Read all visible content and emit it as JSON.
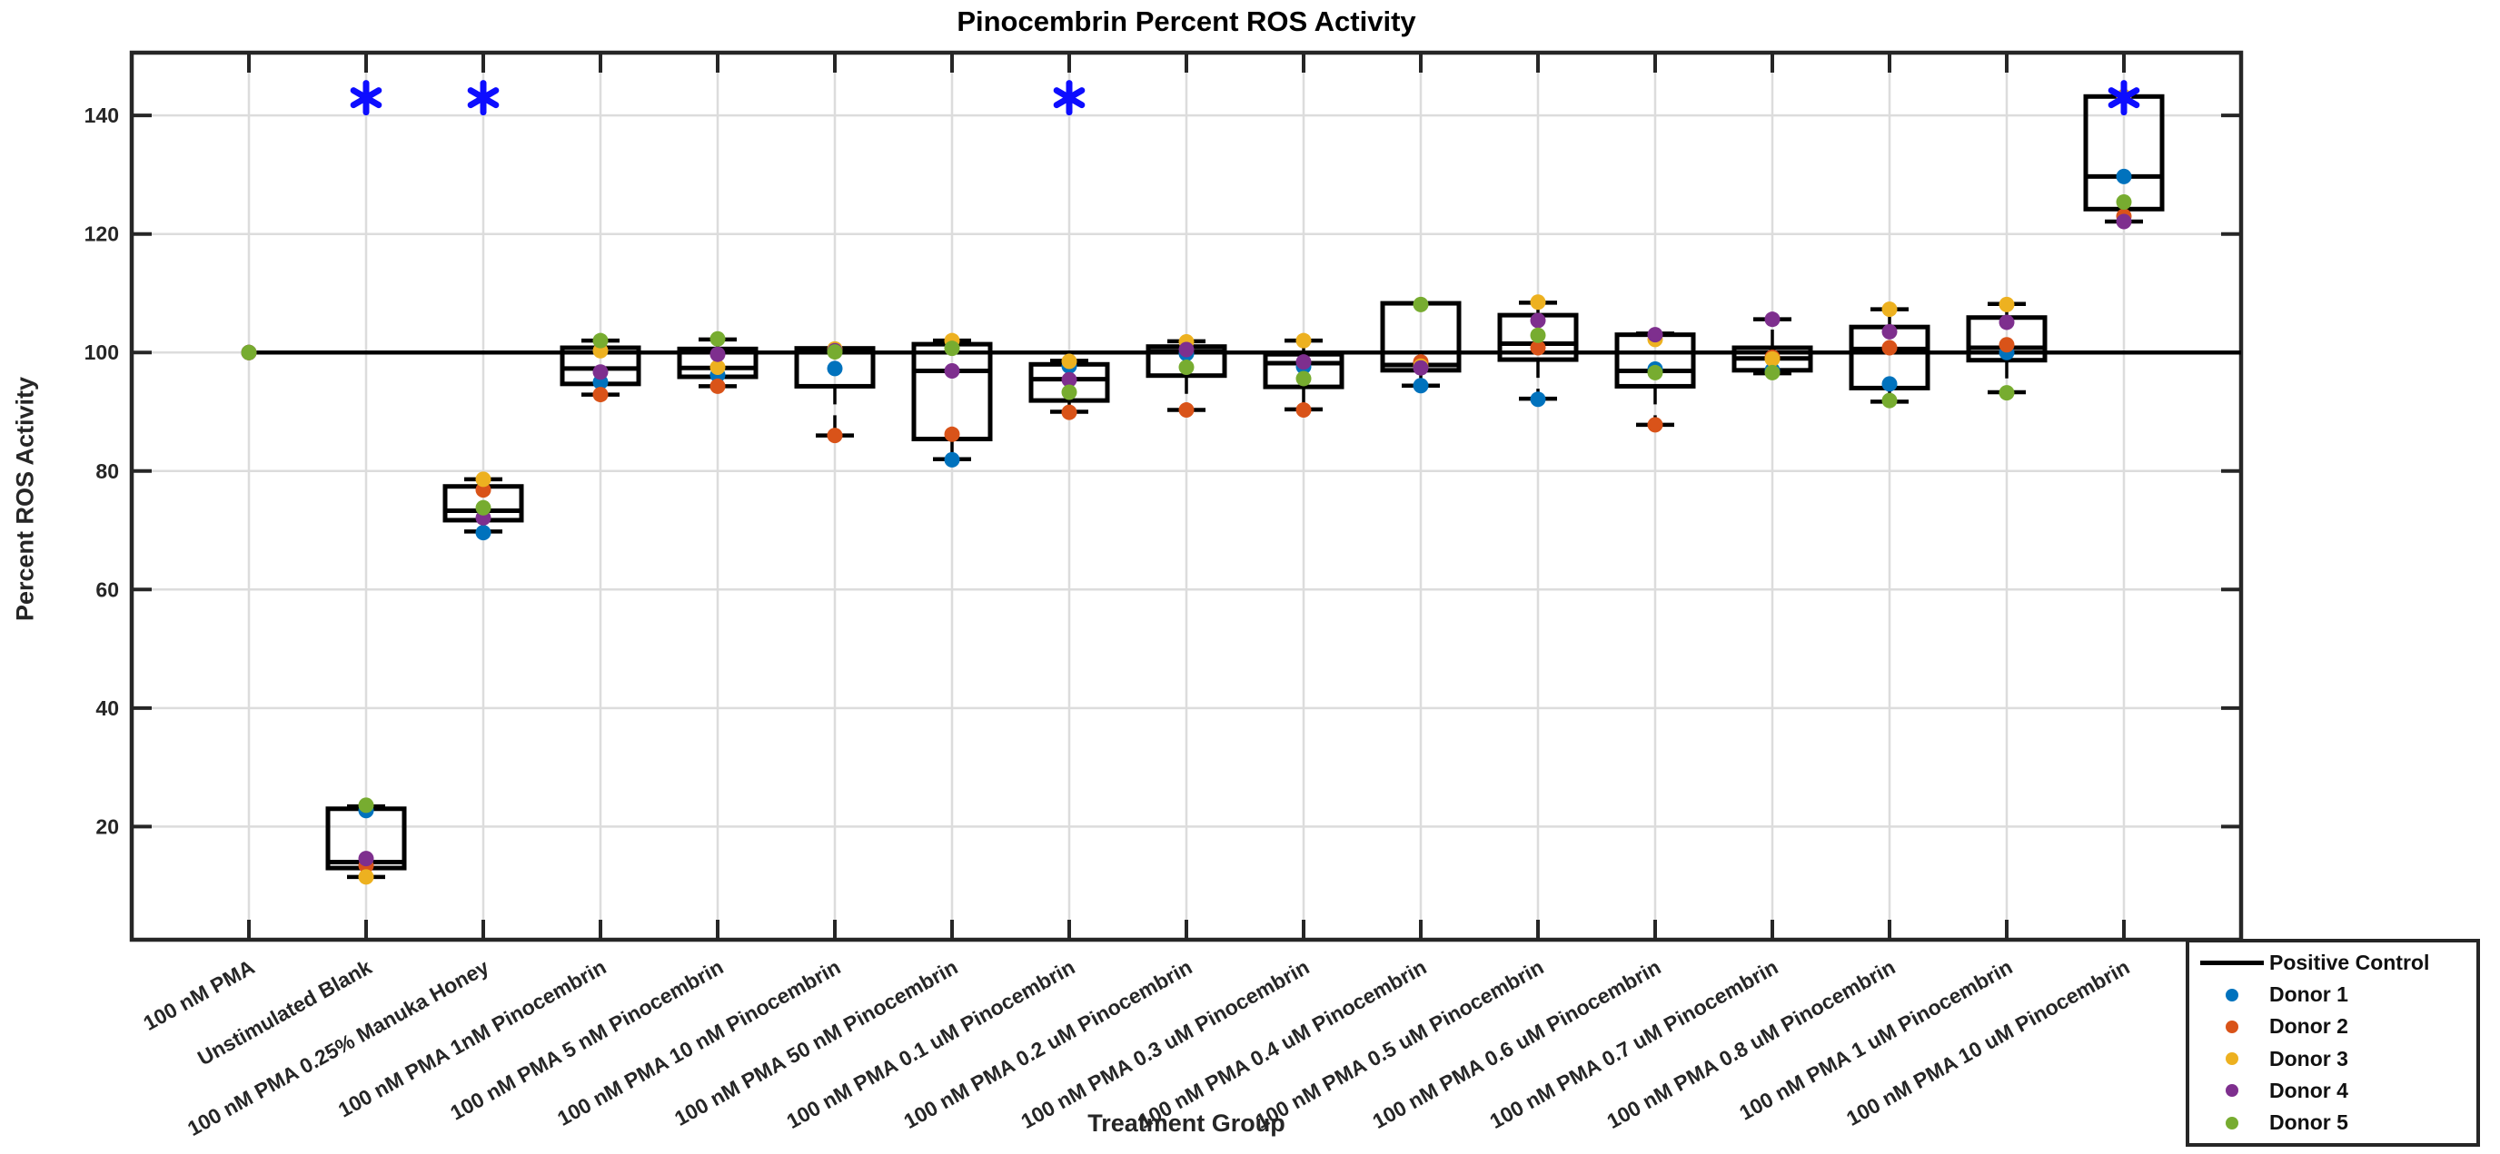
{
  "chart_data": {
    "type": "boxplot-scatter",
    "title": "Pinocembrin Percent ROS Activity",
    "xlabel": "Treatment Group",
    "ylabel": "Percent ROS Activity",
    "ylim": [
      0.9,
      150.6
    ],
    "yticks": [
      20,
      40,
      60,
      80,
      100,
      120,
      140
    ],
    "grid": true,
    "grid_color": "#dcdcdc",
    "axis_color": "#262626",
    "reference_line": {
      "label": "Positive Control",
      "y": 100,
      "color": "#000000"
    },
    "significance_marker": {
      "symbol": "*",
      "color": "#0d0dff",
      "y": 143
    },
    "donors": [
      {
        "name": "Donor 1",
        "color": "#0072BD"
      },
      {
        "name": "Donor 2",
        "color": "#D95319"
      },
      {
        "name": "Donor 3",
        "color": "#EDB120"
      },
      {
        "name": "Donor 4",
        "color": "#7E2F8E"
      },
      {
        "name": "Donor 5",
        "color": "#77AC30"
      }
    ],
    "groups": [
      {
        "label": "100 nM PMA",
        "significant": false,
        "values": [
          100,
          100,
          100,
          100,
          100
        ],
        "box": {
          "whisker_low": 100,
          "q1": 100,
          "median": 100,
          "q3": 100,
          "whisker_high": 100
        }
      },
      {
        "label": "Unstimulated Blank",
        "significant": true,
        "values": [
          22.7,
          13.4,
          11.5,
          14.6,
          23.6
        ],
        "box": {
          "whisker_low": 11.5,
          "q1": 13.0,
          "median": 14.0,
          "q3": 23.0,
          "whisker_high": 23.4
        }
      },
      {
        "label": "100 nM PMA 0.25% Manuka Honey",
        "significant": true,
        "values": [
          69.6,
          76.8,
          78.6,
          72.1,
          73.8
        ],
        "box": {
          "whisker_low": 69.8,
          "q1": 71.7,
          "median": 73.3,
          "q3": 77.4,
          "whisker_high": 78.6
        }
      },
      {
        "label": "100 nM PMA 1nM Pinocembrin",
        "significant": false,
        "values": [
          95.0,
          92.9,
          100.3,
          96.7,
          102.0
        ],
        "box": {
          "whisker_low": 92.9,
          "q1": 94.7,
          "median": 97.3,
          "q3": 100.8,
          "whisker_high": 102.0
        }
      },
      {
        "label": "100 nM PMA 5 nM Pinocembrin",
        "significant": false,
        "values": [
          96.2,
          94.3,
          97.5,
          99.7,
          102.3
        ],
        "box": {
          "whisker_low": 94.3,
          "q1": 95.9,
          "median": 97.4,
          "q3": 100.6,
          "whisker_high": 102.2
        }
      },
      {
        "label": "100 nM PMA 10 nM Pinocembrin",
        "significant": false,
        "values": [
          97.3,
          86.0,
          100.6,
          100.3,
          100.1
        ],
        "box": {
          "whisker_low": 86.0,
          "q1": 94.3,
          "median": 100.1,
          "q3": 100.7,
          "whisker_high": 100.7
        }
      },
      {
        "label": "100 nM PMA 50 nM Pinocembrin",
        "significant": false,
        "values": [
          81.9,
          86.2,
          102.0,
          96.9,
          100.7
        ],
        "box": {
          "whisker_low": 82.0,
          "q1": 85.4,
          "median": 96.9,
          "q3": 101.4,
          "whisker_high": 102.0
        }
      },
      {
        "label": "100 nM PMA 0.1 uM Pinocembrin",
        "significant": true,
        "values": [
          97.7,
          89.9,
          98.5,
          95.4,
          93.3
        ],
        "box": {
          "whisker_low": 90.0,
          "q1": 91.9,
          "median": 95.5,
          "q3": 98.0,
          "whisker_high": 98.6
        }
      },
      {
        "label": "100 nM PMA 0.2 uM Pinocembrin",
        "significant": false,
        "values": [
          99.8,
          90.3,
          101.8,
          100.5,
          97.5
        ],
        "box": {
          "whisker_low": 90.3,
          "q1": 96.1,
          "median": 100.2,
          "q3": 101.0,
          "whisker_high": 101.9
        }
      },
      {
        "label": "100 nM PMA 0.3 uM Pinocembrin",
        "significant": false,
        "values": [
          97.6,
          90.3,
          102.0,
          98.4,
          95.6
        ],
        "box": {
          "whisker_low": 90.4,
          "q1": 94.2,
          "median": 98.2,
          "q3": 99.7,
          "whisker_high": 102.0
        }
      },
      {
        "label": "100 nM PMA 0.4 uM Pinocembrin",
        "significant": false,
        "values": [
          94.4,
          98.4,
          97.7,
          97.4,
          108.1
        ],
        "box": {
          "whisker_low": 94.4,
          "q1": 97.0,
          "median": 97.9,
          "q3": 108.3,
          "whisker_high": 108.3
        }
      },
      {
        "label": "100 nM PMA 0.5 uM Pinocembrin",
        "significant": false,
        "values": [
          92.1,
          100.8,
          108.5,
          105.4,
          102.9
        ],
        "box": {
          "whisker_low": 92.2,
          "q1": 98.8,
          "median": 101.5,
          "q3": 106.3,
          "whisker_high": 108.4
        }
      },
      {
        "label": "100 nM PMA 0.6 uM Pinocembrin",
        "significant": false,
        "values": [
          97.2,
          87.8,
          102.2,
          103.0,
          96.6
        ],
        "box": {
          "whisker_low": 87.8,
          "q1": 94.3,
          "median": 96.9,
          "q3": 103.0,
          "whisker_high": 103.2
        }
      },
      {
        "label": "100 nM PMA 0.7 uM Pinocembrin",
        "significant": false,
        "values": [
          97.0,
          99.2,
          98.9,
          105.6,
          96.6
        ],
        "box": {
          "whisker_low": 96.5,
          "q1": 97.0,
          "median": 99.0,
          "q3": 100.8,
          "whisker_high": 105.6
        }
      },
      {
        "label": "100 nM PMA 0.8 uM Pinocembrin",
        "significant": false,
        "values": [
          94.7,
          100.8,
          107.3,
          103.5,
          91.9
        ],
        "box": {
          "whisker_low": 91.7,
          "q1": 94.0,
          "median": 100.6,
          "q3": 104.3,
          "whisker_high": 107.3
        }
      },
      {
        "label": "100 nM PMA 1 uM Pinocembrin",
        "significant": false,
        "values": [
          100.0,
          101.3,
          108.1,
          105.1,
          93.2
        ],
        "box": {
          "whisker_low": 93.3,
          "q1": 98.7,
          "median": 100.8,
          "q3": 105.9,
          "whisker_high": 108.2
        }
      },
      {
        "label": "100 nM PMA 10 uM Pinocembrin",
        "significant": true,
        "values": [
          129.7,
          123.0,
          143.2,
          122.1,
          125.4
        ],
        "box": {
          "whisker_low": 122.1,
          "q1": 124.2,
          "median": 129.7,
          "q3": 143.2,
          "whisker_high": 143.2
        }
      }
    ]
  },
  "legend": {
    "items": [
      {
        "label": "Positive Control",
        "marker": "line",
        "color": "#000000"
      },
      {
        "label": "Donor 1",
        "marker": "dot",
        "color": "#0072BD"
      },
      {
        "label": "Donor 2",
        "marker": "dot",
        "color": "#D95319"
      },
      {
        "label": "Donor 3",
        "marker": "dot",
        "color": "#EDB120"
      },
      {
        "label": "Donor 4",
        "marker": "dot",
        "color": "#7E2F8E"
      },
      {
        "label": "Donor 5",
        "marker": "dot",
        "color": "#77AC30"
      }
    ]
  }
}
